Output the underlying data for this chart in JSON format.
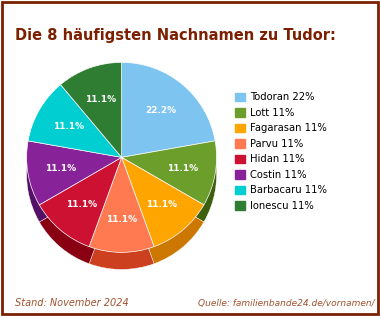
{
  "title": "Die 8 häufigsten Nachnamen zu Tudor:",
  "title_color": "#7B2000",
  "labels": [
    "Todoran",
    "Lott",
    "Fagarasan",
    "Parvu",
    "Hidan",
    "Costin",
    "Barbacaru",
    "Ionescu"
  ],
  "values": [
    22.2,
    11.1,
    11.1,
    11.1,
    11.1,
    11.1,
    11.1,
    11.1
  ],
  "colors": [
    "#7DC4F0",
    "#6B9E2A",
    "#FFA500",
    "#FF7A50",
    "#CC1133",
    "#882299",
    "#00CED1",
    "#2E7D32"
  ],
  "dark_colors": [
    "#4A90C0",
    "#3D6010",
    "#CC7700",
    "#CC4020",
    "#880011",
    "#551166",
    "#008B8B",
    "#1A4D1A"
  ],
  "legend_labels": [
    "Todoran 22%",
    "Lott 11%",
    "Fagarasan 11%",
    "Parvu 11%",
    "Hidan 11%",
    "Costin 11%",
    "Barbacaru 11%",
    "Ionescu 11%"
  ],
  "pct_labels": [
    "22.2%",
    "11.1%",
    "11.1%",
    "11.1%",
    "11.1%",
    "11.1%",
    "11.1%",
    "11.1%"
  ],
  "footer_left": "Stand: November 2024",
  "footer_right": "Quelle: familienbande24.de/vornamen/",
  "footer_color": "#A0522D",
  "bg_color": "#FFFFFF",
  "border_color": "#7B2000",
  "startangle": 90
}
